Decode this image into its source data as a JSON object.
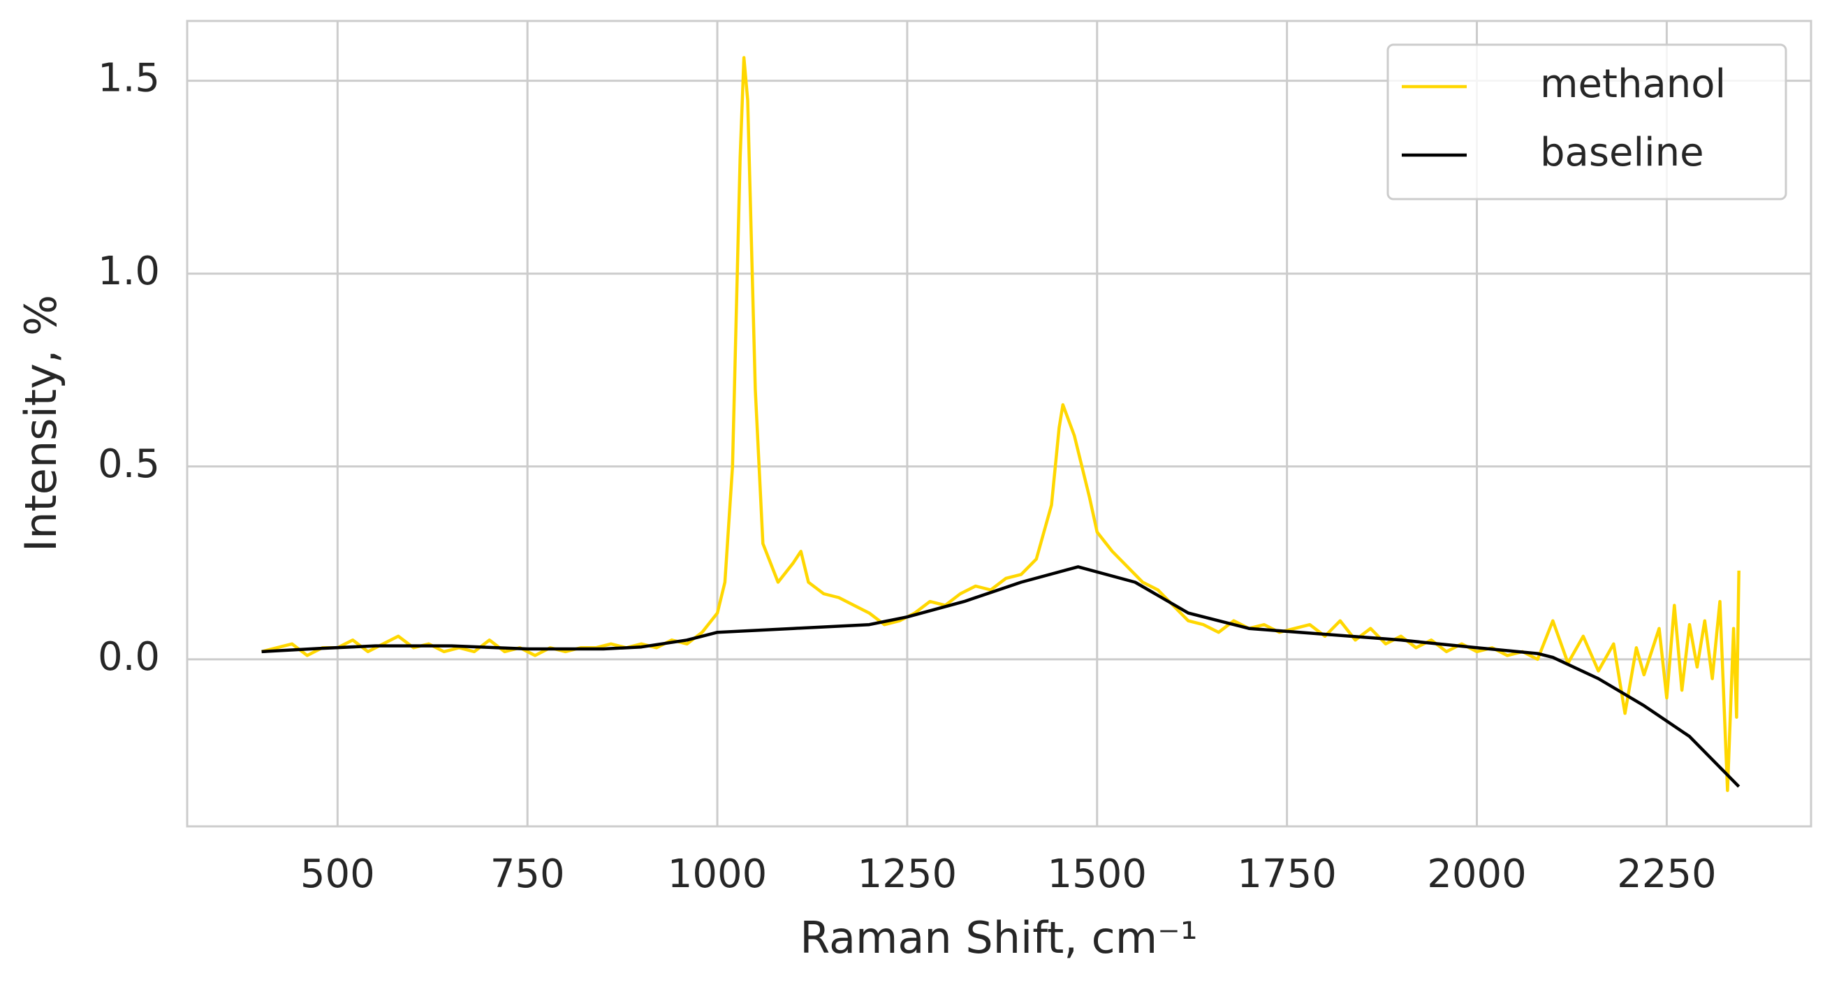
{
  "chart_data": {
    "type": "line",
    "x_label": "Raman Shift, cm⁻¹",
    "y_label": "Intensity, %",
    "xlim": [
      302,
      2440
    ],
    "ylim": [
      -0.433,
      1.655
    ],
    "xticks": [
      500,
      750,
      1000,
      1250,
      1500,
      1750,
      2000,
      2250
    ],
    "yticks": [
      {
        "value": 0,
        "label": "0.0"
      },
      0.5,
      {
        "value": 1,
        "label": "1.0"
      },
      1.5
    ],
    "grid": true,
    "legend": "upper right",
    "series": [
      {
        "name": "methanol",
        "color": "#ffd700",
        "x": [
          400,
          420,
          440,
          460,
          480,
          500,
          520,
          540,
          560,
          580,
          600,
          620,
          640,
          660,
          680,
          700,
          720,
          740,
          760,
          780,
          800,
          820,
          840,
          860,
          880,
          900,
          920,
          940,
          960,
          980,
          1000,
          1010,
          1020,
          1030,
          1035,
          1040,
          1050,
          1060,
          1080,
          1100,
          1110,
          1120,
          1140,
          1160,
          1180,
          1200,
          1220,
          1240,
          1260,
          1280,
          1300,
          1320,
          1340,
          1360,
          1380,
          1400,
          1420,
          1440,
          1450,
          1455,
          1470,
          1490,
          1500,
          1520,
          1540,
          1560,
          1580,
          1600,
          1620,
          1640,
          1660,
          1680,
          1700,
          1720,
          1740,
          1760,
          1780,
          1800,
          1820,
          1840,
          1860,
          1880,
          1900,
          1920,
          1940,
          1960,
          1980,
          2000,
          2020,
          2040,
          2060,
          2080,
          2100,
          2120,
          2140,
          2160,
          2180,
          2195,
          2210,
          2220,
          2240,
          2250,
          2260,
          2270,
          2280,
          2290,
          2300,
          2310,
          2320,
          2330,
          2338,
          2342,
          2345
        ],
        "values": [
          0.02,
          0.03,
          0.04,
          0.01,
          0.03,
          0.03,
          0.05,
          0.02,
          0.04,
          0.06,
          0.03,
          0.04,
          0.02,
          0.03,
          0.02,
          0.05,
          0.02,
          0.03,
          0.01,
          0.03,
          0.02,
          0.03,
          0.03,
          0.04,
          0.03,
          0.04,
          0.03,
          0.05,
          0.04,
          0.07,
          0.12,
          0.2,
          0.5,
          1.3,
          1.56,
          1.45,
          0.7,
          0.3,
          0.2,
          0.25,
          0.28,
          0.2,
          0.17,
          0.16,
          0.14,
          0.12,
          0.09,
          0.1,
          0.12,
          0.15,
          0.14,
          0.17,
          0.19,
          0.18,
          0.21,
          0.22,
          0.26,
          0.4,
          0.6,
          0.66,
          0.58,
          0.42,
          0.33,
          0.28,
          0.24,
          0.2,
          0.18,
          0.14,
          0.1,
          0.09,
          0.07,
          0.1,
          0.08,
          0.09,
          0.07,
          0.08,
          0.09,
          0.06,
          0.1,
          0.05,
          0.08,
          0.04,
          0.06,
          0.03,
          0.05,
          0.02,
          0.04,
          0.02,
          0.03,
          0.01,
          0.02,
          0,
          0.1,
          -0.01,
          0.06,
          -0.03,
          0.04,
          -0.14,
          0.03,
          -0.04,
          0.08,
          -0.1,
          0.14,
          -0.08,
          0.09,
          -0.02,
          0.1,
          -0.05,
          0.15,
          -0.34,
          0.08,
          -0.15,
          0.23
        ]
      },
      {
        "name": "baseline",
        "color": "#000000",
        "x": [
          400,
          475,
          550,
          650,
          750,
          850,
          900,
          960,
          1000,
          1100,
          1200,
          1250,
          1325,
          1400,
          1475,
          1550,
          1620,
          1700,
          1800,
          1900,
          2000,
          2080,
          2100,
          2160,
          2220,
          2280,
          2345
        ],
        "values": [
          0.02,
          0.028,
          0.035,
          0.035,
          0.027,
          0.027,
          0.032,
          0.05,
          0.07,
          0.08,
          0.09,
          0.11,
          0.15,
          0.2,
          0.24,
          0.2,
          0.12,
          0.08,
          0.065,
          0.05,
          0.03,
          0.015,
          0.005,
          -0.05,
          -0.12,
          -0.2,
          -0.33
        ]
      }
    ]
  }
}
